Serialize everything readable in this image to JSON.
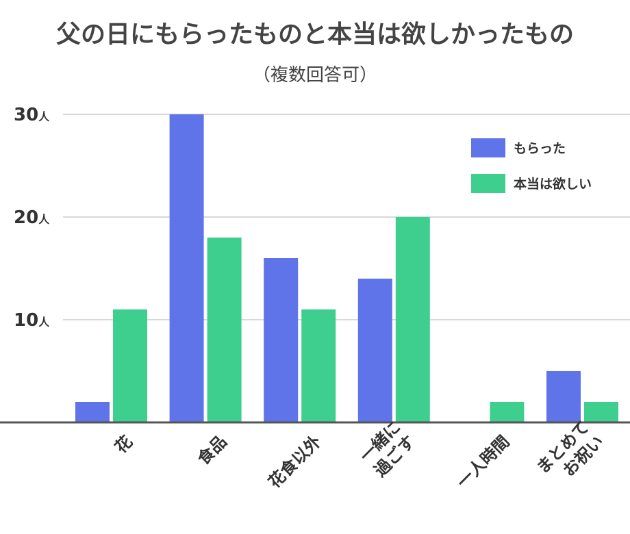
{
  "chart_data": {
    "type": "bar",
    "title": "父の日にもらったものと本当は欲しかったもの",
    "subtitle": "（複数回答可）",
    "categories": [
      [
        "花"
      ],
      [
        "食品"
      ],
      [
        "花食以外"
      ],
      [
        "一緒に",
        "過ごす"
      ],
      [
        "一人時間"
      ],
      [
        "まとめて",
        "お祝い"
      ]
    ],
    "series": [
      {
        "name": "もらった",
        "color": "#5f74e8",
        "values": [
          2,
          30,
          16,
          14,
          0,
          5
        ]
      },
      {
        "name": "本当は欲しい",
        "color": "#3ecf8e",
        "values": [
          11,
          18,
          11,
          20,
          2,
          2
        ]
      }
    ],
    "ylim": [
      0,
      30
    ],
    "yticks": [
      10,
      20,
      30
    ],
    "ytick_unit": "人",
    "grid": true,
    "legend_position": "top-right"
  }
}
